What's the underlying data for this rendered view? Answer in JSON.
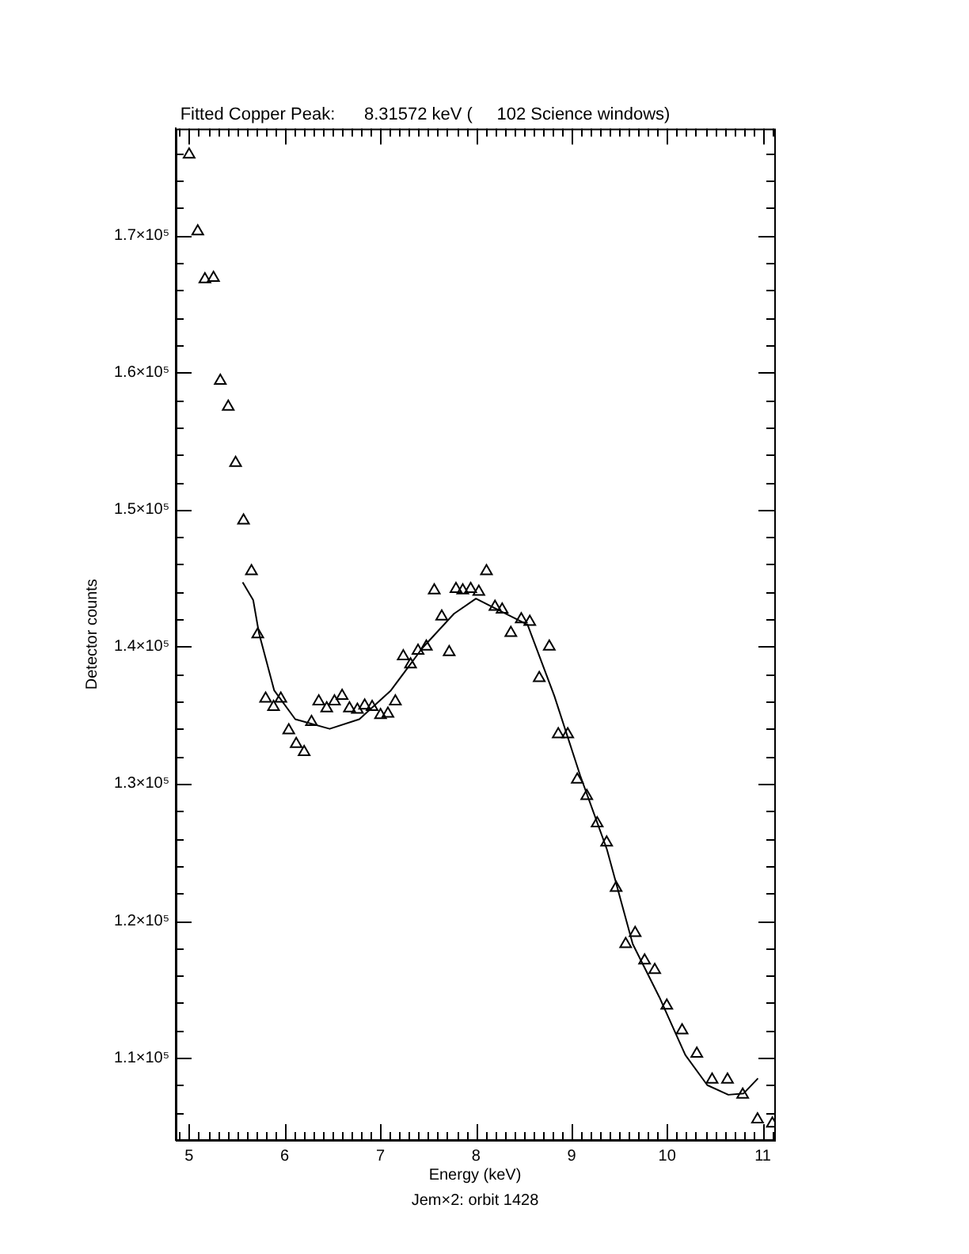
{
  "chart_data": {
    "type": "scatter",
    "title": "Fitted Copper Peak:      8.31572 keV (     102 Science windows)",
    "xlabel": "Energy (keV)",
    "ylabel": "Detector counts",
    "annotations": [
      "Jem×2: orbit 1428"
    ],
    "xlim": [
      4.86,
      11.12
    ],
    "xticks": [
      5,
      6,
      7,
      8,
      9,
      10,
      11
    ],
    "ylim": [
      104000,
      177800
    ],
    "yticks": [
      {
        "value": 110000,
        "label": "1.1×10⁵"
      },
      {
        "value": 120000,
        "label": "1.2×10⁵"
      },
      {
        "value": 130000,
        "label": "1.3×10⁵"
      },
      {
        "value": 140000,
        "label": "1.4×10⁵"
      },
      {
        "value": 150000,
        "label": "1.5×10⁵"
      },
      {
        "value": 160000,
        "label": "1.6×10⁵"
      },
      {
        "value": 170000,
        "label": "1.7×10⁵"
      }
    ],
    "grid": false,
    "legend": false,
    "series": [
      {
        "type": "scatter",
        "marker": "triangle",
        "color": "#000000",
        "x": [
          5.0,
          5.09,
          5.165,
          5.255,
          5.326,
          5.409,
          5.486,
          5.569,
          5.652,
          5.718,
          5.8,
          5.883,
          5.959,
          6.042,
          6.12,
          6.203,
          6.28,
          6.356,
          6.439,
          6.52,
          6.6,
          6.677,
          6.76,
          6.836,
          6.914,
          7.002,
          7.079,
          7.157,
          7.24,
          7.316,
          7.394,
          7.481,
          7.564,
          7.642,
          7.72,
          7.791,
          7.862,
          7.945,
          8.03,
          8.11,
          8.199,
          8.274,
          8.365,
          8.474,
          8.563,
          8.662,
          8.767,
          8.861,
          8.96,
          9.06,
          9.159,
          9.268,
          9.367,
          9.466,
          9.566,
          9.665,
          9.764,
          9.87,
          9.996,
          10.156,
          10.31,
          10.47,
          10.631,
          10.79,
          10.945,
          11.1
        ],
        "values": [
          175900,
          170300,
          166800,
          166900,
          159400,
          157500,
          153400,
          149200,
          145500,
          140900,
          136200,
          135600,
          136200,
          133900,
          132900,
          132300,
          134500,
          136000,
          135500,
          136000,
          136400,
          135500,
          135400,
          135700,
          135600,
          135000,
          135100,
          136000,
          139300,
          138700,
          139700,
          140000,
          144100,
          142200,
          139600,
          144200,
          144100,
          144200,
          144000,
          145500,
          142900,
          142700,
          141000,
          142000,
          141800,
          137700,
          140000,
          133600,
          133600,
          130300,
          129100,
          127100,
          125700,
          122400,
          118300,
          119100,
          117100,
          116400,
          113800,
          112000,
          110300,
          108400,
          108400,
          107300,
          105500,
          105200
        ]
      },
      {
        "type": "line",
        "marker": "none",
        "line_style": "solid",
        "color": "#000000",
        "x": [
          5.56,
          5.67,
          5.73,
          5.89,
          6.11,
          6.47,
          6.78,
          7.11,
          7.44,
          7.77,
          8.0,
          8.54,
          8.82,
          9.09,
          9.37,
          9.64,
          9.92,
          10.19,
          10.42,
          10.64,
          10.8,
          10.95
        ],
        "values": [
          144700,
          143400,
          141000,
          136800,
          134700,
          134000,
          134700,
          136800,
          139900,
          142400,
          143500,
          141600,
          136400,
          130600,
          125200,
          118300,
          114400,
          110200,
          108000,
          107300,
          107400,
          108500
        ]
      }
    ]
  }
}
